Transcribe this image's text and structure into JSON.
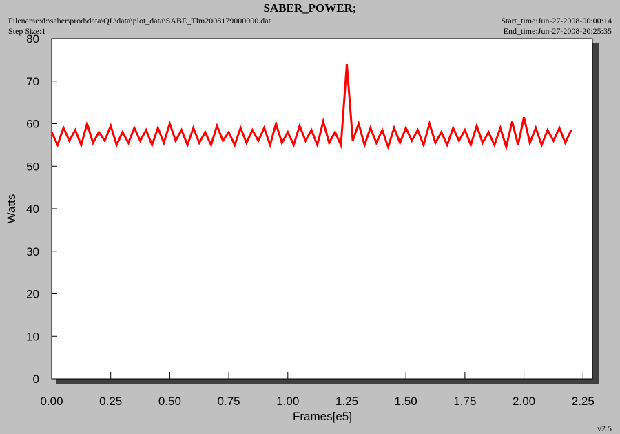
{
  "chart_data": {
    "type": "line",
    "title": "SABER_POWER;",
    "filename": "Filename:d:\\saber\\prod\\data\\QL\\data\\plot_data\\SABE_Tlm2008179000000.dat",
    "step_size": "Step Size:1",
    "start_time": "Start_time:Jun-27-2008-00:00:14",
    "end_time": "End_time:Jun-27-2008-20:25:35",
    "version": "v2.5",
    "xlabel": "Frames[e5]",
    "ylabel": "Watts",
    "xlim": [
      0,
      2.29
    ],
    "ylim": [
      0,
      80
    ],
    "xticks": [
      {
        "value": 0,
        "label": "0.00"
      },
      {
        "value": 0.25,
        "label": "0.25"
      },
      {
        "value": 0.5,
        "label": "0.50"
      },
      {
        "value": 0.75,
        "label": "0.75"
      },
      {
        "value": 1,
        "label": "1.00"
      },
      {
        "value": 1.25,
        "label": "1.25"
      },
      {
        "value": 1.5,
        "label": "1.50"
      },
      {
        "value": 1.75,
        "label": "1.75"
      },
      {
        "value": 2,
        "label": "2.00"
      },
      {
        "value": 2.25,
        "label": "2.25"
      }
    ],
    "yticks": [
      0,
      10,
      20,
      30,
      40,
      50,
      60,
      70,
      80
    ],
    "series": [
      {
        "color": "#ff0000",
        "x": [
          0,
          0.025,
          0.05,
          0.075,
          0.1,
          0.125,
          0.15,
          0.175,
          0.2,
          0.225,
          0.25,
          0.275,
          0.3,
          0.325,
          0.35,
          0.375,
          0.4,
          0.425,
          0.45,
          0.475,
          0.5,
          0.525,
          0.55,
          0.575,
          0.6,
          0.625,
          0.65,
          0.675,
          0.7,
          0.725,
          0.75,
          0.775,
          0.8,
          0.825,
          0.85,
          0.875,
          0.9,
          0.925,
          0.95,
          0.975,
          1,
          1.025,
          1.05,
          1.075,
          1.1,
          1.125,
          1.15,
          1.175,
          1.2,
          1.225,
          1.25,
          1.275,
          1.3,
          1.325,
          1.35,
          1.375,
          1.4,
          1.425,
          1.45,
          1.475,
          1.5,
          1.525,
          1.55,
          1.575,
          1.6,
          1.625,
          1.65,
          1.675,
          1.7,
          1.725,
          1.75,
          1.775,
          1.8,
          1.825,
          1.85,
          1.875,
          1.9,
          1.925,
          1.95,
          1.975,
          2,
          2.025,
          2.05,
          2.075,
          2.1,
          2.125,
          2.15,
          2.175,
          2.2
        ],
        "values": [
          58,
          55,
          59,
          56,
          58.5,
          55,
          60,
          55.5,
          58,
          56,
          59.5,
          55,
          58,
          55.5,
          59,
          56,
          58.5,
          55,
          59,
          55.5,
          60,
          56,
          58.5,
          55,
          59,
          55.5,
          58,
          55,
          59.5,
          56,
          58,
          55,
          59,
          55.5,
          58.5,
          56,
          59,
          55,
          60,
          55.5,
          58,
          55,
          59.5,
          56,
          58.5,
          55,
          60.5,
          55.5,
          58,
          55,
          74,
          56,
          60,
          55,
          59,
          55.5,
          58.5,
          54.5,
          59,
          55.5,
          59,
          56,
          58.5,
          55,
          60,
          55.5,
          58,
          55,
          59,
          56,
          58.5,
          55,
          59.5,
          55.5,
          58,
          55,
          59,
          54.5,
          60.5,
          55,
          61.5,
          55.5,
          59,
          55,
          58.5,
          56,
          59,
          55.5,
          58.5
        ]
      }
    ]
  }
}
